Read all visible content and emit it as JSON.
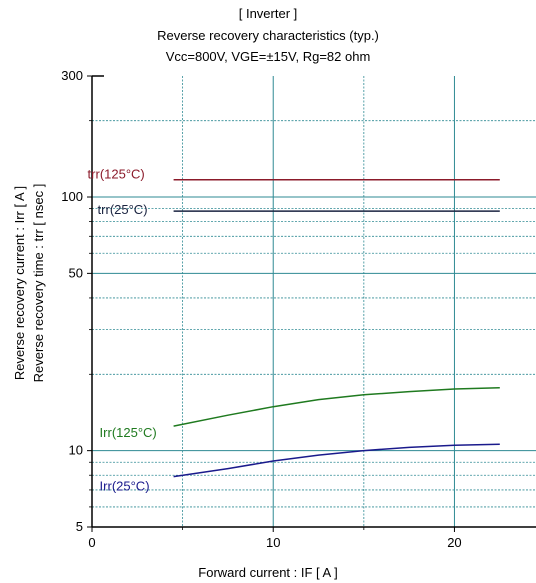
{
  "chart_data": {
    "type": "line",
    "title": "[ Inverter ]",
    "subtitle": "Reverse recovery characteristics  (typ.)",
    "conditions": "Vcc=800V, VGE=±15V, Rg=82 ohm",
    "xlabel": "Forward current  :  IF  [ A ]",
    "ylabel_line1": "Reverse recovery current  :  Irr  [ A ]",
    "ylabel_line2": "Reverse recovery time  :  trr  [ nsec ]",
    "xlim": [
      0,
      24.5
    ],
    "ylim": [
      5,
      300
    ],
    "yscale": "log",
    "grid": true,
    "x_ticks": [
      0,
      10,
      20
    ],
    "x_tick_labels": [
      "0",
      "10",
      "20"
    ],
    "y_ticks": [
      5,
      10,
      50,
      100,
      300
    ],
    "y_tick_labels": [
      "5",
      "10",
      "50",
      "100",
      "300"
    ],
    "series": [
      {
        "name": "trr(125°C)",
        "color": "#8b1a2a",
        "x": [
          4.5,
          22.5
        ],
        "y": [
          117,
          117
        ]
      },
      {
        "name": "trr(25°C)",
        "color": "#1a2340",
        "x": [
          4.5,
          22.5
        ],
        "y": [
          88,
          88
        ]
      },
      {
        "name": "Irr(125°C)",
        "color": "#1f7a1f",
        "x": [
          4.5,
          7.5,
          10,
          12.5,
          15,
          17.5,
          20,
          22.5
        ],
        "y": [
          12.5,
          13.8,
          14.9,
          15.9,
          16.6,
          17.1,
          17.5,
          17.7
        ]
      },
      {
        "name": "Irr(25°C)",
        "color": "#1a1a8c",
        "x": [
          4.5,
          7.5,
          10,
          12.5,
          15,
          17.5,
          20,
          22.5
        ],
        "y": [
          7.9,
          8.5,
          9.1,
          9.6,
          10.0,
          10.3,
          10.5,
          10.6
        ]
      }
    ]
  }
}
